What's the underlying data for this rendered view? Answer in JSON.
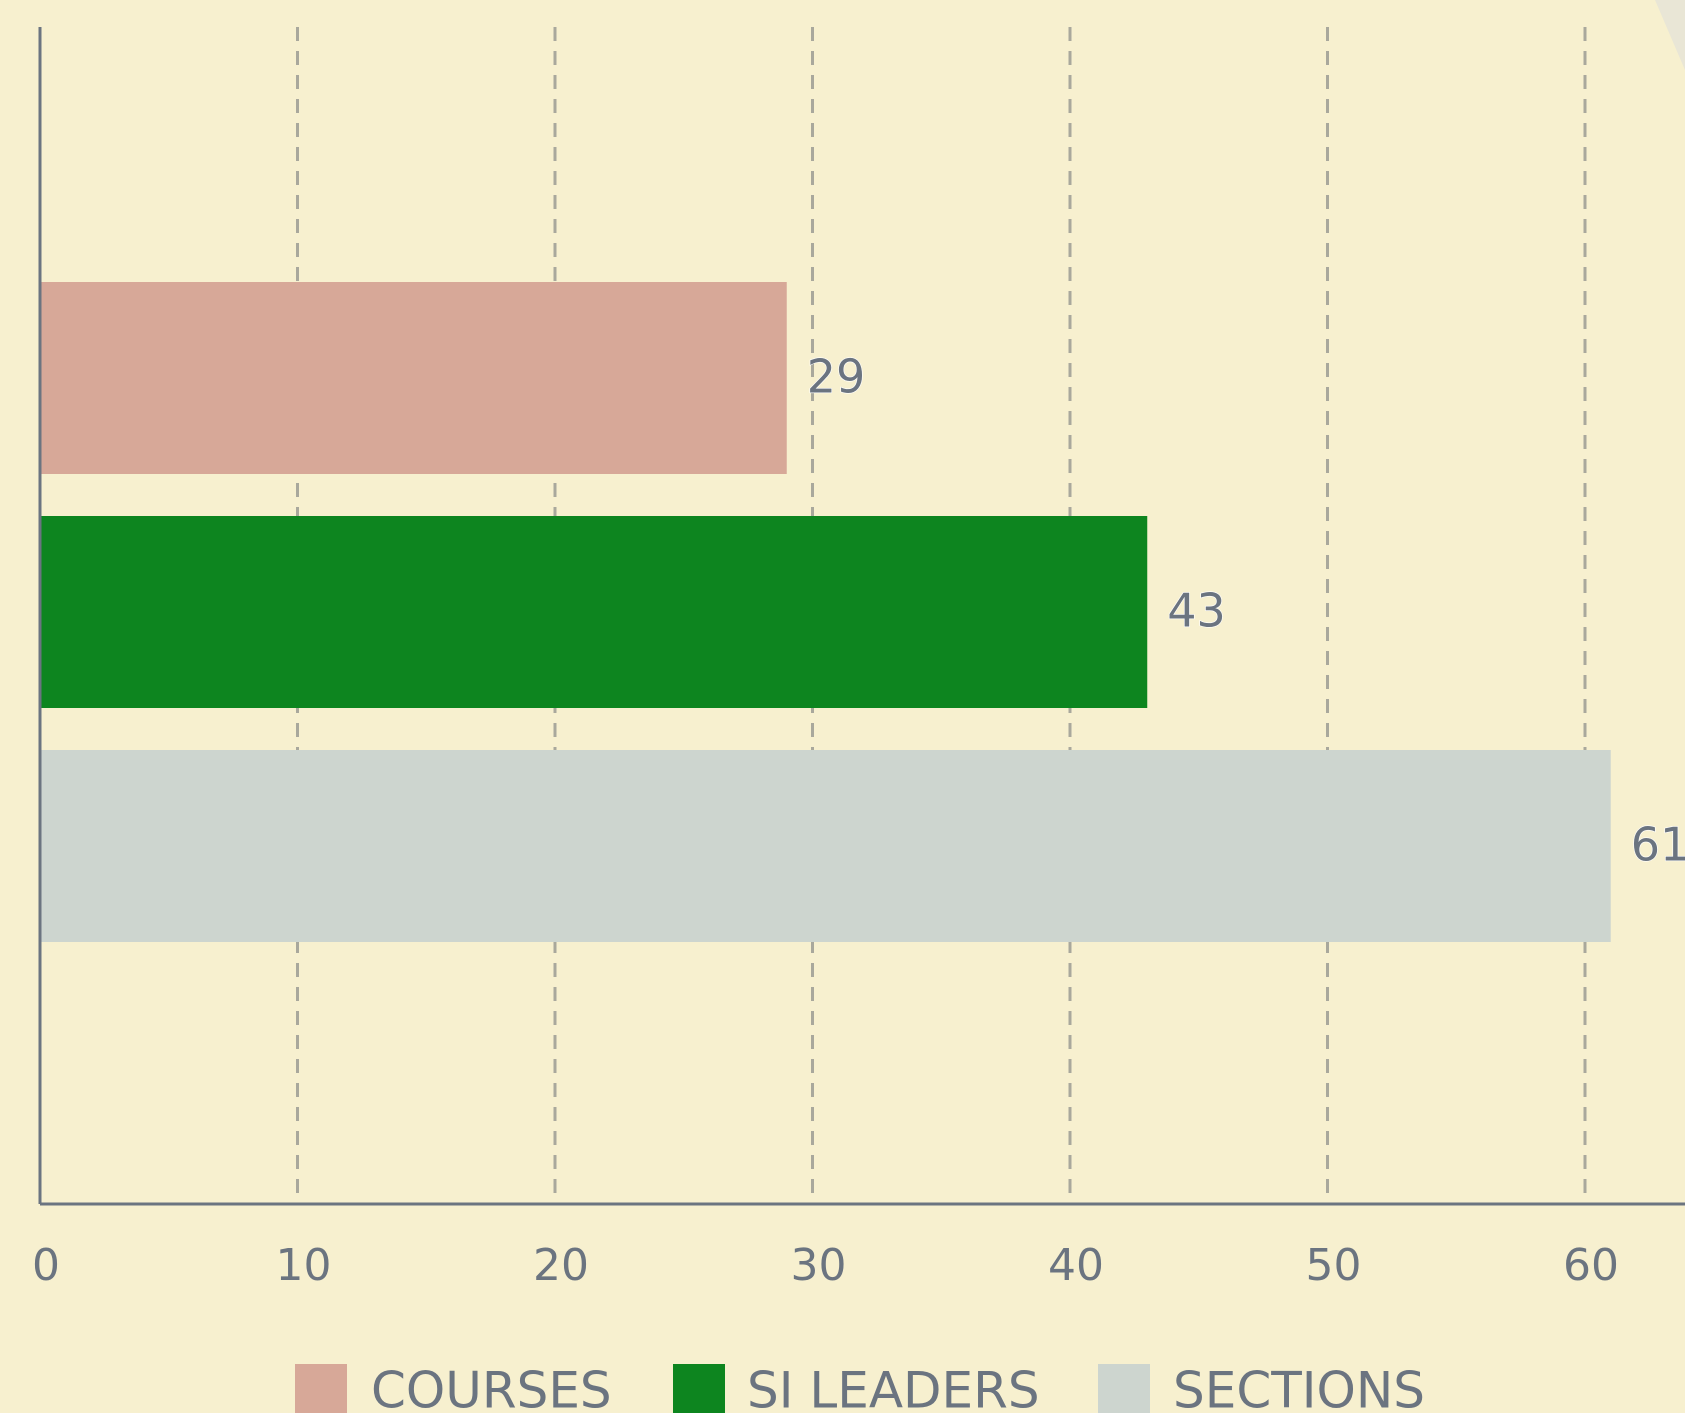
{
  "chart_data": {
    "type": "bar",
    "orientation": "horizontal",
    "series": [
      {
        "name": "COURSES",
        "color": "#d7a898",
        "values": [
          29
        ]
      },
      {
        "name": "SI LEADERS",
        "color": "#0d851f",
        "values": [
          43
        ]
      },
      {
        "name": "SECTIONS",
        "color": "#cdd5cf",
        "values": [
          61
        ]
      }
    ],
    "xlim": [
      0,
      64
    ],
    "xticks": [
      0,
      10,
      20,
      30,
      40,
      50,
      60
    ],
    "grid": true,
    "legend": "bottom"
  }
}
